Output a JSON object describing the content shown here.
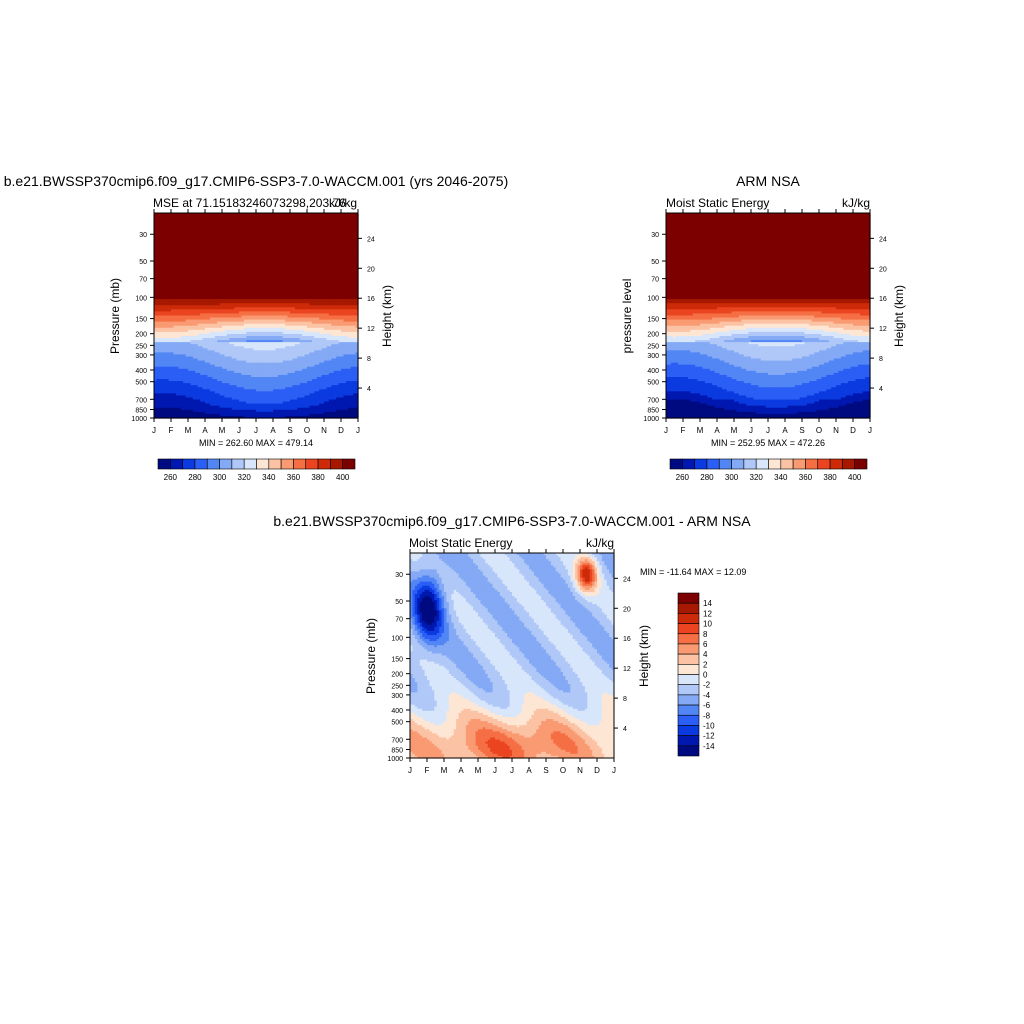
{
  "palette": {
    "colors": [
      "#000a80",
      "#0018b0",
      "#0a3ae0",
      "#2a5ef5",
      "#5286f5",
      "#84a9f5",
      "#b0c8f8",
      "#d8e6fb",
      "#fde6d4",
      "#fbc2a4",
      "#f99a72",
      "#f56e44",
      "#ea4520",
      "#cc2a08",
      "#a61800",
      "#7d0000"
    ]
  },
  "panels": [
    {
      "title": "b.e21.BWSSP370cmip6.f09_g17.CMIP6-SSP3-7.0-WACCM.001 (yrs 2046-2075)",
      "left_label": "MSE at 71.15183246073298,203.76",
      "right_label": "kJ/kg",
      "ylabel": "Pressure (mb)",
      "y2label": "Height (km)",
      "stats": "MIN = 262.60 MAX = 479.14"
    },
    {
      "title": "ARM NSA",
      "left_label": "Moist Static Energy",
      "right_label": "kJ/kg",
      "ylabel": "pressure level",
      "y2label": "Height (km)",
      "stats": "MIN = 252.95 MAX = 472.26"
    },
    {
      "title": "b.e21.BWSSP370cmip6.f09_g17.CMIP6-SSP3-7.0-WACCM.001 - ARM NSA",
      "left_label": "Moist Static Energy",
      "right_label": "kJ/kg",
      "ylabel": "Pressure (mb)",
      "y2label": "Height (km)",
      "stats": "MIN = -11.64 MAX =  12.09"
    }
  ],
  "chart_data": [
    {
      "type": "heatmap",
      "x_ticks": [
        "J",
        "F",
        "M",
        "A",
        "M",
        "J",
        "J",
        "A",
        "S",
        "O",
        "N",
        "D",
        "J"
      ],
      "pressure_ticks": [
        30,
        50,
        70,
        100,
        150,
        200,
        250,
        300,
        400,
        500,
        700,
        850,
        1000
      ],
      "height_ticks_km": [
        4,
        8,
        12,
        16,
        20,
        24
      ],
      "colorbar_labels": [
        "260",
        "280",
        "300",
        "320",
        "340",
        "360",
        "380",
        "400"
      ],
      "levels": [
        255,
        260,
        270,
        280,
        290,
        300,
        310,
        320,
        330,
        340,
        350,
        360,
        370,
        380,
        390,
        400
      ],
      "min": 262.6,
      "max": 479.14
    },
    {
      "type": "heatmap",
      "x_ticks": [
        "J",
        "F",
        "M",
        "A",
        "M",
        "J",
        "J",
        "A",
        "S",
        "O",
        "N",
        "D",
        "J"
      ],
      "pressure_ticks": [
        30,
        50,
        70,
        100,
        150,
        200,
        250,
        300,
        400,
        500,
        700,
        850,
        1000
      ],
      "height_ticks_km": [
        4,
        8,
        12,
        16,
        20,
        24
      ],
      "colorbar_labels": [
        "260",
        "280",
        "300",
        "320",
        "340",
        "360",
        "380",
        "400"
      ],
      "levels": [
        255,
        260,
        270,
        280,
        290,
        300,
        310,
        320,
        330,
        340,
        350,
        360,
        370,
        380,
        390,
        400
      ],
      "min": 252.95,
      "max": 472.26
    },
    {
      "type": "heatmap",
      "x_ticks": [
        "J",
        "F",
        "M",
        "A",
        "M",
        "J",
        "J",
        "A",
        "S",
        "O",
        "N",
        "D",
        "J"
      ],
      "pressure_ticks": [
        30,
        50,
        70,
        100,
        150,
        200,
        250,
        300,
        400,
        500,
        700,
        850,
        1000
      ],
      "height_ticks_km": [
        4,
        8,
        12,
        16,
        20,
        24
      ],
      "colorbar_labels": [
        "14",
        "12",
        "10",
        "8",
        "6",
        "4",
        "2",
        "0",
        "-2",
        "-4",
        "-6",
        "-8",
        "-10",
        "-12",
        "-14"
      ],
      "levels": [
        -16,
        -14,
        -12,
        -10,
        -8,
        -6,
        -4,
        -2,
        0,
        2,
        4,
        6,
        8,
        10,
        12,
        14
      ],
      "min": -11.64,
      "max": 12.09
    }
  ]
}
